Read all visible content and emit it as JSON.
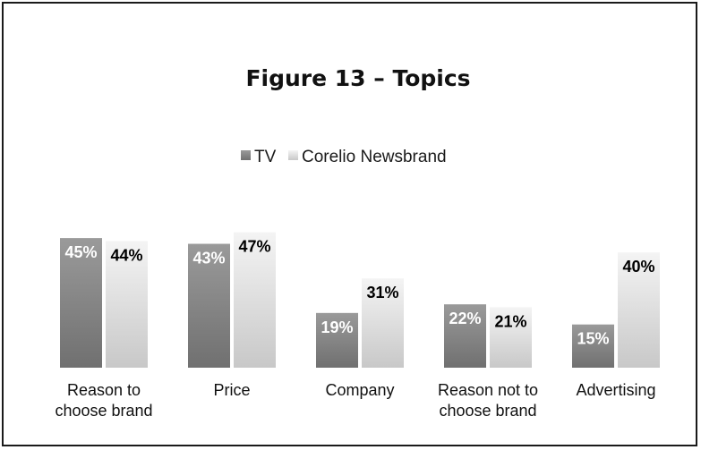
{
  "chart_data": {
    "type": "bar",
    "title": "Figure 13 – Topics",
    "xlabel": "",
    "ylabel": "",
    "ylim": [
      0,
      50
    ],
    "grid": false,
    "legend_position": "top-center",
    "categories": [
      [
        "Reason to",
        "choose brand"
      ],
      [
        "Price"
      ],
      [
        "Company"
      ],
      [
        "Reason not to",
        "choose brand"
      ],
      [
        "Advertising"
      ]
    ],
    "series": [
      {
        "name": "TV",
        "values": [
          45,
          43,
          19,
          22,
          15
        ],
        "labels": [
          "45%",
          "43%",
          "19%",
          "22%",
          "15%"
        ],
        "color_top": "#9a9a9a",
        "color_bottom": "#707070",
        "label_color": "#ffffff"
      },
      {
        "name": "Corelio Newsbrand",
        "values": [
          44,
          47,
          31,
          21,
          40
        ],
        "labels": [
          "44%",
          "47%",
          "31%",
          "21%",
          "40%"
        ],
        "color_top": "#f4f4f4",
        "color_bottom": "#c8c8c8",
        "label_color": "#000000"
      }
    ]
  }
}
